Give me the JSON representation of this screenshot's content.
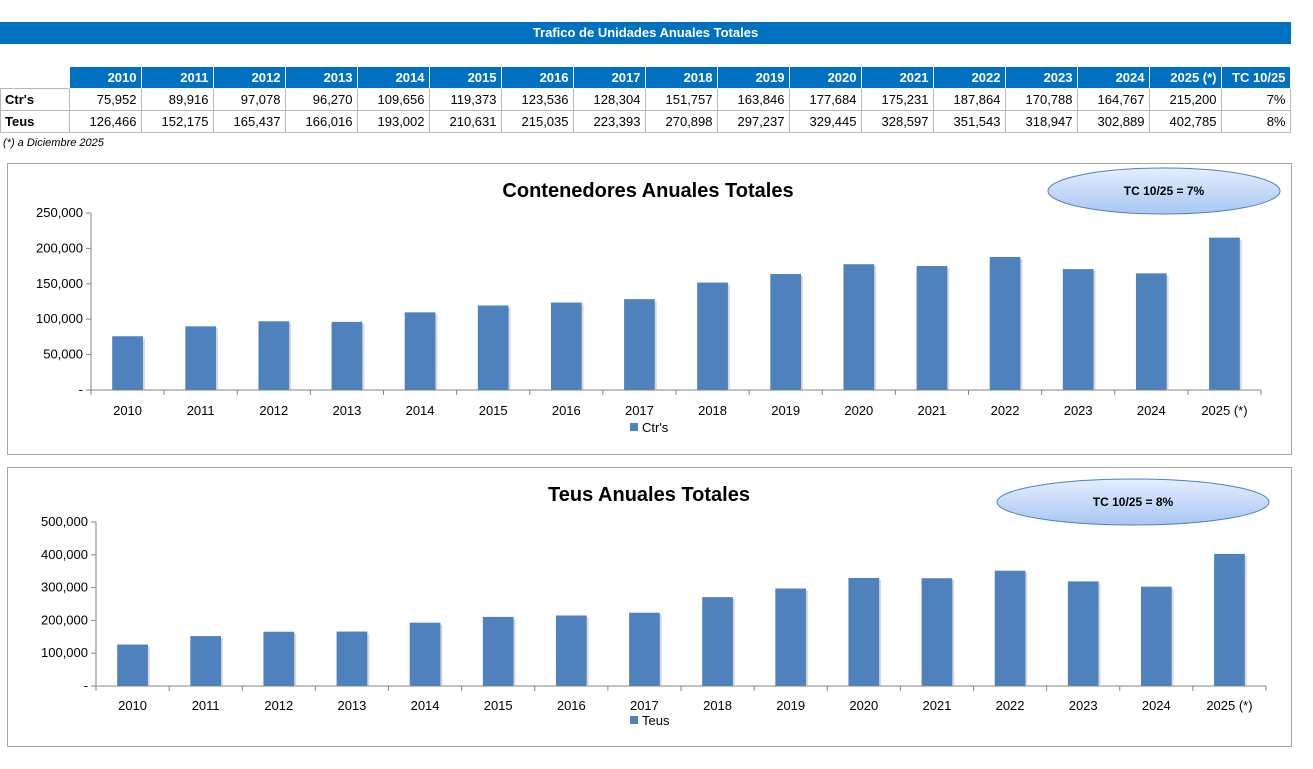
{
  "header": {
    "title": "Trafico de Unidades Anuales Totales"
  },
  "table": {
    "columns": [
      "2010",
      "2011",
      "2012",
      "2013",
      "2014",
      "2015",
      "2016",
      "2017",
      "2018",
      "2019",
      "2020",
      "2021",
      "2022",
      "2023",
      "2024",
      "2025 (*)",
      "TC 10/25"
    ],
    "rows": [
      {
        "label": "Ctr's",
        "cells": [
          "75,952",
          "89,916",
          "97,078",
          "96,270",
          "109,656",
          "119,373",
          "123,536",
          "128,304",
          "151,757",
          "163,846",
          "177,684",
          "175,231",
          "187,864",
          "170,788",
          "164,767",
          "215,200",
          "7%"
        ]
      },
      {
        "label": "Teus",
        "cells": [
          "126,466",
          "152,175",
          "165,437",
          "166,016",
          "193,002",
          "210,631",
          "215,035",
          "223,393",
          "270,898",
          "297,237",
          "329,445",
          "328,597",
          "351,543",
          "318,947",
          "302,889",
          "402,785",
          "8%"
        ]
      }
    ]
  },
  "footnote": "(*) a Diciembre 2025",
  "colors": {
    "bar": "#4f81bd",
    "header": "#0070c0",
    "ellipse_top": "#e4eeff",
    "ellipse_bottom": "#a9c6f2"
  },
  "chart_data": [
    {
      "type": "bar",
      "title": "Contenedores Anuales Totales",
      "categories": [
        "2010",
        "2011",
        "2012",
        "2013",
        "2014",
        "2015",
        "2016",
        "2017",
        "2018",
        "2019",
        "2020",
        "2021",
        "2022",
        "2023",
        "2024",
        "2025 (*)"
      ],
      "series": [
        {
          "name": "Ctr's",
          "values": [
            75952,
            89916,
            97078,
            96270,
            109656,
            119373,
            123536,
            128304,
            151757,
            163846,
            177684,
            175231,
            187864,
            170788,
            164767,
            215200
          ]
        }
      ],
      "ylim": [
        0,
        250000
      ],
      "yticks": [
        0,
        50000,
        100000,
        150000,
        200000,
        250000
      ],
      "ytick_labels": [
        "-",
        "50,000",
        "100,000",
        "150,000",
        "200,000",
        "250,000"
      ],
      "annotation": "TC 10/25 = 7%",
      "legend": "bottom"
    },
    {
      "type": "bar",
      "title": "Teus Anuales Totales",
      "categories": [
        "2010",
        "2011",
        "2012",
        "2013",
        "2014",
        "2015",
        "2016",
        "2017",
        "2018",
        "2019",
        "2020",
        "2021",
        "2022",
        "2023",
        "2024",
        "2025 (*)"
      ],
      "series": [
        {
          "name": "Teus",
          "values": [
            126466,
            152175,
            165437,
            166016,
            193002,
            210631,
            215035,
            223393,
            270898,
            297237,
            329445,
            328597,
            351543,
            318947,
            302889,
            402785
          ]
        }
      ],
      "ylim": [
        0,
        500000
      ],
      "yticks": [
        0,
        100000,
        200000,
        300000,
        400000,
        500000
      ],
      "ytick_labels": [
        "-",
        "100,000",
        "200,000",
        "300,000",
        "400,000",
        "500,000"
      ],
      "annotation": "TC 10/25 = 8%",
      "legend": "bottom"
    }
  ]
}
